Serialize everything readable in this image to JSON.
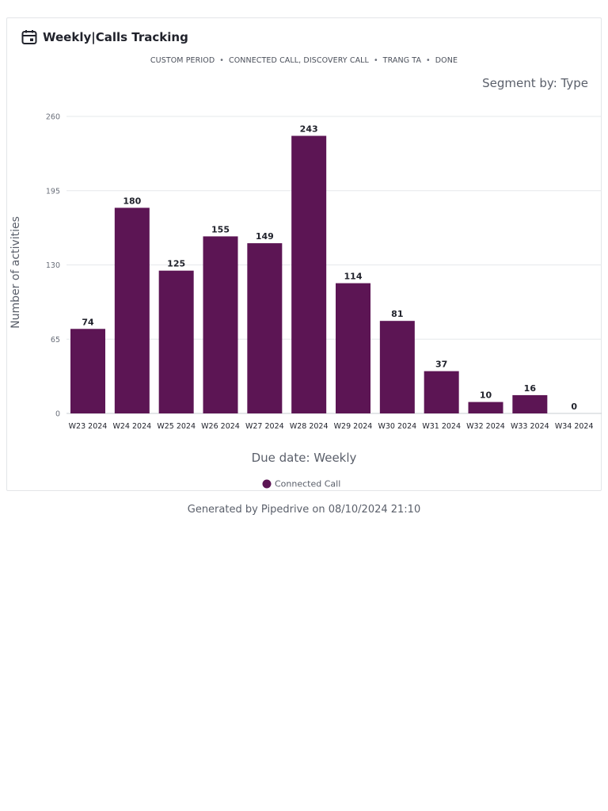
{
  "report": {
    "title": "Weekly|Calls Tracking",
    "filters": [
      "CUSTOM PERIOD",
      "CONNECTED CALL, DISCOVERY CALL",
      "TRANG TA",
      "DONE"
    ],
    "segment_by": "Segment by: Type",
    "footer": "Generated by Pipedrive on 08/10/2024 21:10",
    "icons": {
      "title_icon": "calendar-icon"
    }
  },
  "chart_data": {
    "type": "bar",
    "categories": [
      "W23 2024",
      "W24 2024",
      "W25 2024",
      "W26 2024",
      "W27 2024",
      "W28 2024",
      "W29 2024",
      "W30 2024",
      "W31 2024",
      "W32 2024",
      "W33 2024",
      "W34 2024"
    ],
    "series": [
      {
        "name": "Connected Call",
        "values": [
          74,
          180,
          125,
          155,
          149,
          243,
          114,
          81,
          37,
          10,
          16,
          0
        ],
        "color": "#5c1554"
      }
    ],
    "xlabel": "Due date: Weekly",
    "ylabel": "Number of activities",
    "ylim": [
      0,
      260
    ],
    "yticks": [
      0,
      65,
      130,
      195,
      260
    ],
    "grid": true,
    "legend_position": "bottom"
  }
}
